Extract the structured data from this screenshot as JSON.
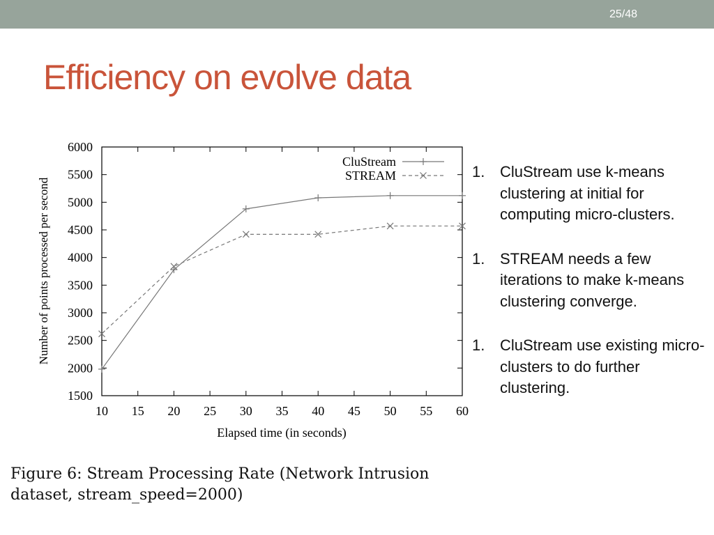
{
  "header": {
    "page_number": "25/48",
    "title": "Efficiency on evolve data",
    "bar_color": "#97a49b",
    "title_color": "#c9543a"
  },
  "figure": {
    "caption_line1": "Figure 6: Stream Processing Rate (Network Intrusion",
    "caption_line2": "dataset, stream_speed=2000)"
  },
  "bullets": [
    {
      "number": "1.",
      "text": "CluStream use k-means clustering at initial for computing micro-clusters."
    },
    {
      "number": "1.",
      "text": "STREAM needs a few iterations to make k-means clustering converge."
    },
    {
      "number": "1.",
      "text": "CluStream use existing micro-clusters to do further clustering."
    }
  ],
  "chart_data": {
    "type": "line",
    "title": "",
    "xlabel": "Elapsed time (in seconds)",
    "ylabel": "Number of points processed per second",
    "xlim": [
      10,
      60
    ],
    "ylim": [
      1500,
      6000
    ],
    "xticks": [
      10,
      15,
      20,
      25,
      30,
      35,
      40,
      45,
      50,
      55,
      60
    ],
    "yticks": [
      1500,
      2000,
      2500,
      3000,
      3500,
      4000,
      4500,
      5000,
      5500,
      6000
    ],
    "x": [
      10,
      20,
      30,
      40,
      50,
      60
    ],
    "grid": false,
    "legend_position": "top-right",
    "series": [
      {
        "name": "CluStream",
        "values": [
          1980,
          3780,
          4880,
          5080,
          5120,
          5120
        ],
        "marker": "plus",
        "line": "solid",
        "color": "#777777"
      },
      {
        "name": "STREAM",
        "values": [
          2620,
          3840,
          4420,
          4420,
          4570,
          4570
        ],
        "marker": "cross",
        "line": "dashed",
        "color": "#777777"
      }
    ]
  }
}
